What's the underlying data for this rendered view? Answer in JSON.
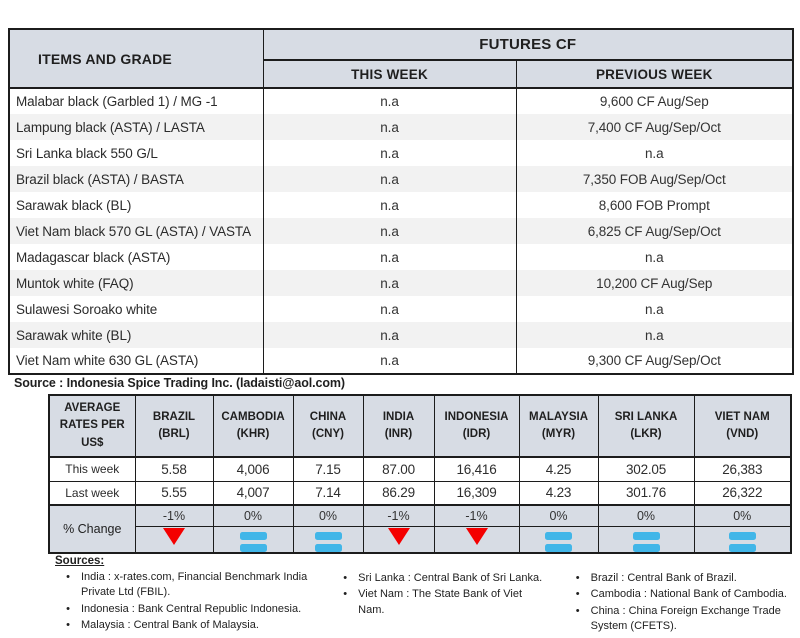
{
  "futures_table": {
    "header": {
      "items_and_grade": "ITEMS AND GRADE",
      "futures_cf": "FUTURES CF",
      "this_week": "THIS WEEK",
      "previous_week": "PREVIOUS WEEK"
    },
    "rows": [
      {
        "item": "Malabar black (Garbled 1) / MG -1",
        "this_week": "n.a",
        "previous_week": "9,600 CF Aug/Sep"
      },
      {
        "item": "Lampung black (ASTA) / LASTA",
        "this_week": "n.a",
        "previous_week": "7,400 CF Aug/Sep/Oct"
      },
      {
        "item": "Sri Lanka black 550 G/L",
        "this_week": "n.a",
        "previous_week": "n.a"
      },
      {
        "item": "Brazil black (ASTA) / BASTA",
        "this_week": "n.a",
        "previous_week": "7,350 FOB Aug/Sep/Oct"
      },
      {
        "item": "Sarawak black (BL)",
        "this_week": "n.a",
        "previous_week": "8,600 FOB Prompt"
      },
      {
        "item": "Viet Nam black 570 GL (ASTA) / VASTA",
        "this_week": "n.a",
        "previous_week": "6,825 CF Aug/Sep/Oct"
      },
      {
        "item": "Madagascar black (ASTA)",
        "this_week": "n.a",
        "previous_week": "n.a"
      },
      {
        "item": "Muntok white (FAQ)",
        "this_week": "n.a",
        "previous_week": "10,200 CF Aug/Sep"
      },
      {
        "item": "Sulawesi Soroako white",
        "this_week": "n.a",
        "previous_week": "n.a"
      },
      {
        "item": "Sarawak  white (BL)",
        "this_week": "n.a",
        "previous_week": "n.a"
      },
      {
        "item": "Viet Nam white 630 GL (ASTA)",
        "this_week": "n.a",
        "previous_week": "9,300 CF Aug/Sep/Oct"
      }
    ],
    "source": "Source : Indonesia Spice Trading Inc. (ladaisti@aol.com)"
  },
  "rates_table": {
    "corner_label": "AVERAGE RATES PER US$",
    "row_labels": {
      "this_week": "This week",
      "last_week": "Last week",
      "change": "% Change"
    },
    "columns": [
      {
        "country": "BRAZIL",
        "code": "(BRL)",
        "this_week": "5.58",
        "last_week": "5.55",
        "change": "-1%",
        "direction": "down"
      },
      {
        "country": "CAMBODIA",
        "code": "(KHR)",
        "this_week": "4,006",
        "last_week": "4,007",
        "change": "0%",
        "direction": "equal"
      },
      {
        "country": "CHINA",
        "code": "(CNY)",
        "this_week": "7.15",
        "last_week": "7.14",
        "change": "0%",
        "direction": "equal"
      },
      {
        "country": "INDIA",
        "code": "(INR)",
        "this_week": "87.00",
        "last_week": "86.29",
        "change": "-1%",
        "direction": "down"
      },
      {
        "country": "INDONESIA",
        "code": "(IDR)",
        "this_week": "16,416",
        "last_week": "16,309",
        "change": "-1%",
        "direction": "down"
      },
      {
        "country": "MALAYSIA",
        "code": "(MYR)",
        "this_week": "4.25",
        "last_week": "4.23",
        "change": "0%",
        "direction": "equal"
      },
      {
        "country": "SRI LANKA",
        "code": "(LKR)",
        "this_week": "302.05",
        "last_week": "301.76",
        "change": "0%",
        "direction": "equal"
      },
      {
        "country": "VIET NAM",
        "code": "(VND)",
        "this_week": "26,383",
        "last_week": "26,322",
        "change": "0%",
        "direction": "equal"
      }
    ]
  },
  "sources": {
    "title": "Sources:",
    "bullet": "•",
    "col1": [
      "India : x-rates.com, Financial Benchmark India Private Ltd (FBIL).",
      "Indonesia : Bank Central Republic Indonesia.",
      "Malaysia : Central Bank of Malaysia."
    ],
    "col2": [
      "Sri Lanka : Central Bank of Sri Lanka.",
      "Viet Nam : The State Bank of Viet Nam."
    ],
    "col3": [
      "Brazil :  Central Bank of Brazil.",
      "Cambodia : National Bank of Cambodia.",
      "China : China Foreign Exchange Trade System (CFETS)."
    ]
  },
  "colors": {
    "header_bg": "#d7dce4",
    "stripe": "#f2f2f2",
    "down_red": "#f40000",
    "equal_blue": "#41b6e8"
  }
}
